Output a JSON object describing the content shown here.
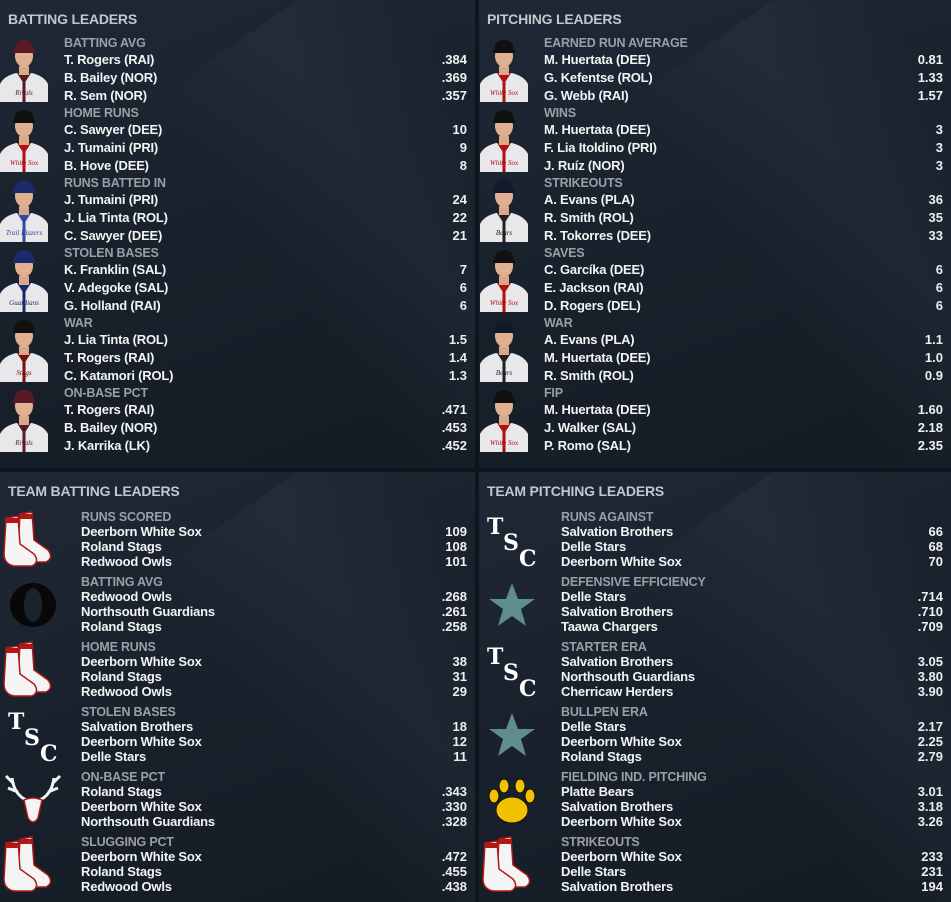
{
  "batting_leaders": {
    "title": "BATTING LEADERS",
    "groups": [
      {
        "stat": "BATTING AVG",
        "photo": {
          "cap": "#5a1a24",
          "trim": "#5a1a24",
          "script": "Rivals"
        },
        "rows": [
          {
            "name": "T. Rogers (RAI)",
            "value": ".384"
          },
          {
            "name": "B. Bailey (NOR)",
            "value": ".369"
          },
          {
            "name": "R. Sem (NOR)",
            "value": ".357"
          }
        ]
      },
      {
        "stat": "HOME RUNS",
        "photo": {
          "cap": "#111111",
          "trim": "#b01010",
          "script": "White Sox"
        },
        "rows": [
          {
            "name": "C. Sawyer (DEE)",
            "value": "10"
          },
          {
            "name": "J. Tumaini (PRI)",
            "value": "9"
          },
          {
            "name": "B. Hove (DEE)",
            "value": "8"
          }
        ]
      },
      {
        "stat": "RUNS BATTED IN",
        "photo": {
          "cap": "#1a2a6a",
          "trim": "#2a4aa0",
          "script": "Trail Blazers"
        },
        "rows": [
          {
            "name": "J. Tumaini (PRI)",
            "value": "24"
          },
          {
            "name": "J. Lia Tinta (ROL)",
            "value": "22"
          },
          {
            "name": "C. Sawyer (DEE)",
            "value": "21"
          }
        ]
      },
      {
        "stat": "STOLEN BASES",
        "photo": {
          "cap": "#1a2a6a",
          "trim": "#1a2a6a",
          "script": "Guardians"
        },
        "rows": [
          {
            "name": "K. Franklin (SAL)",
            "value": "7"
          },
          {
            "name": "V. Adegoke (SAL)",
            "value": "6"
          },
          {
            "name": "G. Holland (RAI)",
            "value": "6"
          }
        ]
      },
      {
        "stat": "WAR",
        "photo": {
          "cap": "#111111",
          "trim": "#7a1010",
          "script": "Stags"
        },
        "rows": [
          {
            "name": "J. Lia Tinta (ROL)",
            "value": "1.5"
          },
          {
            "name": "T. Rogers (RAI)",
            "value": "1.4"
          },
          {
            "name": "C. Katamori (ROL)",
            "value": "1.3"
          }
        ]
      },
      {
        "stat": "ON-BASE PCT",
        "photo": {
          "cap": "#5a1a24",
          "trim": "#5a1a24",
          "script": "Rivals"
        },
        "rows": [
          {
            "name": "T. Rogers (RAI)",
            "value": ".471"
          },
          {
            "name": "B. Bailey (NOR)",
            "value": ".453"
          },
          {
            "name": "J. Karrika (LK)",
            "value": ".452"
          }
        ]
      }
    ]
  },
  "pitching_leaders": {
    "title": "PITCHING LEADERS",
    "groups": [
      {
        "stat": "EARNED RUN AVERAGE",
        "photo": {
          "cap": "#111111",
          "trim": "#b01010",
          "script": "White Sox"
        },
        "rows": [
          {
            "name": "M. Huertata (DEE)",
            "value": "0.81"
          },
          {
            "name": "G. Kefentse (ROL)",
            "value": "1.33"
          },
          {
            "name": "G. Webb (RAI)",
            "value": "1.57"
          }
        ]
      },
      {
        "stat": "WINS",
        "photo": {
          "cap": "#111111",
          "trim": "#b01010",
          "script": "White Sox"
        },
        "rows": [
          {
            "name": "M. Huertata (DEE)",
            "value": "3"
          },
          {
            "name": "F. Lia Itoldino (PRI)",
            "value": "3"
          },
          {
            "name": "J. Ruíz (NOR)",
            "value": "3"
          }
        ]
      },
      {
        "stat": "STRIKEOUTS",
        "photo": {
          "cap": "#111a2a",
          "trim": "#222222",
          "script": "Bears"
        },
        "rows": [
          {
            "name": "A. Evans (PLA)",
            "value": "36"
          },
          {
            "name": "R. Smith (ROL)",
            "value": "35"
          },
          {
            "name": "R. Tokorres (DEE)",
            "value": "33"
          }
        ]
      },
      {
        "stat": "SAVES",
        "photo": {
          "cap": "#111111",
          "trim": "#b01010",
          "script": "White Sox"
        },
        "rows": [
          {
            "name": "C. Garcíka (DEE)",
            "value": "6"
          },
          {
            "name": "E. Jackson (RAI)",
            "value": "6"
          },
          {
            "name": "D. Rogers (DEL)",
            "value": "6"
          }
        ]
      },
      {
        "stat": "WAR",
        "photo": {
          "cap": "#111a2a",
          "trim": "#222222",
          "script": "Bears"
        },
        "rows": [
          {
            "name": "A. Evans (PLA)",
            "value": "1.1"
          },
          {
            "name": "M. Huertata (DEE)",
            "value": "1.0"
          },
          {
            "name": "R. Smith (ROL)",
            "value": "0.9"
          }
        ]
      },
      {
        "stat": "FIP",
        "photo": {
          "cap": "#111111",
          "trim": "#b01010",
          "script": "White Sox"
        },
        "rows": [
          {
            "name": "M. Huertata (DEE)",
            "value": "1.60"
          },
          {
            "name": "J. Walker (SAL)",
            "value": "2.18"
          },
          {
            "name": "P. Romo (SAL)",
            "value": "2.35"
          }
        ]
      }
    ]
  },
  "team_batting_leaders": {
    "title": "TEAM BATTING LEADERS",
    "groups": [
      {
        "stat": "RUNS SCORED",
        "logo": "socks",
        "rows": [
          {
            "name": "Deerborn White Sox",
            "value": "109"
          },
          {
            "name": "Roland Stags",
            "value": "108"
          },
          {
            "name": "Redwood Owls",
            "value": "101"
          }
        ]
      },
      {
        "stat": "BATTING AVG",
        "logo": "letter-o",
        "rows": [
          {
            "name": "Redwood Owls",
            "value": ".268"
          },
          {
            "name": "Northsouth Guardians",
            "value": ".261"
          },
          {
            "name": "Roland Stags",
            "value": ".258"
          }
        ]
      },
      {
        "stat": "HOME RUNS",
        "logo": "socks",
        "rows": [
          {
            "name": "Deerborn White Sox",
            "value": "38"
          },
          {
            "name": "Roland Stags",
            "value": "31"
          },
          {
            "name": "Redwood Owls",
            "value": "29"
          }
        ]
      },
      {
        "stat": "STOLEN BASES",
        "logo": "tsc",
        "logo_text": "TSC",
        "rows": [
          {
            "name": "Salvation Brothers",
            "value": "18"
          },
          {
            "name": "Deerborn White Sox",
            "value": "12"
          },
          {
            "name": "Delle Stars",
            "value": "11"
          }
        ]
      },
      {
        "stat": "ON-BASE PCT",
        "logo": "antlers",
        "rows": [
          {
            "name": "Roland Stags",
            "value": ".343"
          },
          {
            "name": "Deerborn White Sox",
            "value": ".330"
          },
          {
            "name": "Northsouth Guardians",
            "value": ".328"
          }
        ]
      },
      {
        "stat": "SLUGGING PCT",
        "logo": "socks",
        "rows": [
          {
            "name": "Deerborn White Sox",
            "value": ".472"
          },
          {
            "name": "Roland Stags",
            "value": ".455"
          },
          {
            "name": "Redwood Owls",
            "value": ".438"
          }
        ]
      }
    ]
  },
  "team_pitching_leaders": {
    "title": "TEAM PITCHING LEADERS",
    "groups": [
      {
        "stat": "RUNS AGAINST",
        "logo": "tsc",
        "logo_text": "TSC",
        "rows": [
          {
            "name": "Salvation Brothers",
            "value": "66"
          },
          {
            "name": "Delle Stars",
            "value": "68"
          },
          {
            "name": "Deerborn White Sox",
            "value": "70"
          }
        ]
      },
      {
        "stat": "DEFENSIVE EFFICIENCY",
        "logo": "star",
        "rows": [
          {
            "name": "Delle Stars",
            "value": ".714"
          },
          {
            "name": "Salvation Brothers",
            "value": ".710"
          },
          {
            "name": "Taawa Chargers",
            "value": ".709"
          }
        ]
      },
      {
        "stat": "STARTER ERA",
        "logo": "tsc",
        "logo_text": "TSC",
        "rows": [
          {
            "name": "Salvation Brothers",
            "value": "3.05"
          },
          {
            "name": "Northsouth Guardians",
            "value": "3.80"
          },
          {
            "name": "Cherricaw Herders",
            "value": "3.90"
          }
        ]
      },
      {
        "stat": "BULLPEN ERA",
        "logo": "star",
        "rows": [
          {
            "name": "Delle Stars",
            "value": "2.17"
          },
          {
            "name": "Deerborn White Sox",
            "value": "2.25"
          },
          {
            "name": "Roland Stags",
            "value": "2.79"
          }
        ]
      },
      {
        "stat": "FIELDING IND. PITCHING",
        "logo": "paw",
        "rows": [
          {
            "name": "Platte Bears",
            "value": "3.01"
          },
          {
            "name": "Salvation Brothers",
            "value": "3.18"
          },
          {
            "name": "Deerborn White Sox",
            "value": "3.26"
          }
        ]
      },
      {
        "stat": "STRIKEOUTS",
        "logo": "socks",
        "rows": [
          {
            "name": "Deerborn White Sox",
            "value": "233"
          },
          {
            "name": "Delle Stars",
            "value": "231"
          },
          {
            "name": "Salvation Brothers",
            "value": "194"
          }
        ]
      }
    ]
  },
  "colors": {
    "background": "#19212c",
    "title": "#c3c6ca",
    "stat_label": "#9b9fa5",
    "value": "#f2f3f4",
    "star": "#5f8c8c",
    "paw": "#f2c200",
    "sock_red": "#b01818"
  }
}
